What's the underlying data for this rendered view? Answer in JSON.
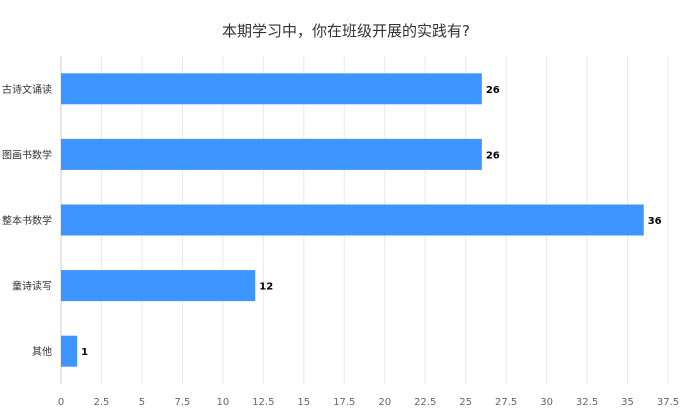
{
  "chart_data": {
    "type": "bar",
    "orientation": "horizontal",
    "title": "本期学习中，你在班级开展的实践有?",
    "xlabel": "",
    "ylabel": "",
    "categories": [
      "古诗文诵读",
      "图画书数学",
      "整本书数学",
      "童诗读写",
      "其他"
    ],
    "values": [
      26,
      26,
      36,
      12,
      1
    ],
    "xlim": [
      0,
      37.5
    ],
    "xticks": [
      "0",
      "2.5",
      "5",
      "7.5",
      "10",
      "12.5",
      "15",
      "17.5",
      "20",
      "22.5",
      "25",
      "27.5",
      "30",
      "32.5",
      "35",
      "37.5"
    ],
    "grid": true,
    "legend": "none",
    "bar_color": "#3D95FF",
    "grid_color": "#E8E8E8"
  }
}
